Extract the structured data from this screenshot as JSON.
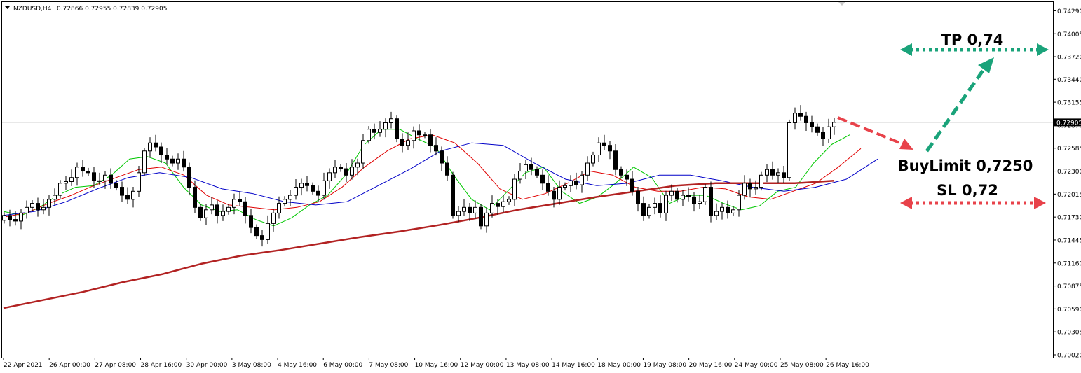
{
  "header": {
    "symbol_label": "NZDUSD,H4",
    "ohlc": "0.72866 0.72955 0.72839 0.72905"
  },
  "colors": {
    "bull_body": "#ffffff",
    "bear_body": "#000000",
    "ma_fast": "#00c800",
    "ma_mid": "#e00000",
    "ma_slow": "#0000c8",
    "ma_long": "#b22222",
    "tp_arrow": "#1aa37a",
    "sl_arrow": "#e8424a",
    "entry_arrow": "#e8424a",
    "current_price_line": "#c0c0c0"
  },
  "annotations": {
    "tp": "TP 0,74",
    "entry": "BuyLimit 0,7250",
    "sl": "SL 0,72"
  },
  "chart_data": {
    "type": "candlestick",
    "symbol": "NZDUSD",
    "timeframe": "H4",
    "current_price": 0.72905,
    "current_price_label": "0.72905",
    "ylim": [
      0.7002,
      0.7432
    ],
    "y_ticks": [
      "0.74290",
      "0.74005",
      "0.73720",
      "0.73440",
      "0.73155",
      "0.72870",
      "0.72585",
      "0.72300",
      "0.72015",
      "0.71730",
      "0.71445",
      "0.71160",
      "0.70875",
      "0.70590",
      "0.70305",
      "0.70020"
    ],
    "x_labels": [
      "22 Apr 2021",
      "26 Apr 00:00",
      "27 Apr 08:00",
      "28 Apr 16:00",
      "30 Apr 00:00",
      "3 May 08:00",
      "4 May 16:00",
      "6 May 00:00",
      "7 May 08:00",
      "10 May 16:00",
      "12 May 00:00",
      "13 May 08:00",
      "14 May 16:00",
      "18 May 00:00",
      "19 May 08:00",
      "20 May 16:00",
      "24 May 00:00",
      "25 May 08:00",
      "26 May 16:00"
    ],
    "candles_close": [
      0.7175,
      0.717,
      0.7168,
      0.7178,
      0.7185,
      0.719,
      0.7182,
      0.7185,
      0.7195,
      0.72,
      0.7215,
      0.7217,
      0.7222,
      0.7235,
      0.723,
      0.7228,
      0.7218,
      0.7218,
      0.7225,
      0.7215,
      0.721,
      0.72,
      0.7195,
      0.7205,
      0.7228,
      0.7255,
      0.7265,
      0.726,
      0.725,
      0.7245,
      0.724,
      0.7245,
      0.7235,
      0.721,
      0.7185,
      0.7172,
      0.7182,
      0.7188,
      0.7175,
      0.718,
      0.7185,
      0.7195,
      0.7192,
      0.7175,
      0.716,
      0.715,
      0.7145,
      0.7165,
      0.7178,
      0.719,
      0.7195,
      0.72,
      0.721,
      0.7215,
      0.7212,
      0.7205,
      0.72,
      0.7218,
      0.7228,
      0.7235,
      0.7233,
      0.7225,
      0.7235,
      0.724,
      0.7268,
      0.7282,
      0.7278,
      0.7282,
      0.729,
      0.7295,
      0.727,
      0.7262,
      0.7268,
      0.728,
      0.7275,
      0.7275,
      0.7262,
      0.7255,
      0.724,
      0.7225,
      0.7175,
      0.718,
      0.7185,
      0.7178,
      0.7185,
      0.7162,
      0.7178,
      0.719,
      0.7186,
      0.7192,
      0.7195,
      0.722,
      0.723,
      0.7238,
      0.7232,
      0.7225,
      0.7215,
      0.7205,
      0.7195,
      0.721,
      0.7212,
      0.7218,
      0.7213,
      0.7225,
      0.724,
      0.725,
      0.7265,
      0.7262,
      0.7255,
      0.7232,
      0.7225,
      0.722,
      0.7205,
      0.719,
      0.7175,
      0.7185,
      0.719,
      0.7178,
      0.72,
      0.7205,
      0.7195,
      0.72,
      0.7198,
      0.719,
      0.7192,
      0.721,
      0.7175,
      0.718,
      0.7185,
      0.7178,
      0.7182,
      0.72,
      0.7215,
      0.7208,
      0.721,
      0.7225,
      0.7232,
      0.7225,
      0.7228,
      0.7222,
      0.729,
      0.7302,
      0.7298,
      0.729,
      0.7285,
      0.7278,
      0.727,
      0.7285,
      0.72905
    ],
    "ma_series": [
      {
        "values": [
          0.718,
          0.7175,
          0.7185,
          0.72,
          0.721,
          0.7212,
          0.7225,
          0.7245,
          0.7248,
          0.724,
          0.721,
          0.7188,
          0.718,
          0.7182,
          0.717,
          0.7162,
          0.7172,
          0.7188,
          0.72,
          0.7225,
          0.7262,
          0.7282,
          0.7282,
          0.727,
          0.726,
          0.7225,
          0.7195,
          0.7182,
          0.7205,
          0.7228,
          0.7235,
          0.7205,
          0.719,
          0.7198,
          0.7215,
          0.7235,
          0.7222,
          0.719,
          0.72,
          0.72,
          0.719,
          0.7182,
          0.7187,
          0.7205,
          0.721,
          0.724,
          0.7263,
          0.7275
        ]
      },
      {
        "values": [
          0.7173,
          0.7178,
          0.719,
          0.72,
          0.7212,
          0.7222,
          0.7232,
          0.7235,
          0.7225,
          0.72,
          0.7188,
          0.7185,
          0.7182,
          0.7185,
          0.7192,
          0.721,
          0.7235,
          0.7255,
          0.727,
          0.7275,
          0.7265,
          0.724,
          0.7208,
          0.7195,
          0.7202,
          0.7215,
          0.723,
          0.7225,
          0.721,
          0.7205,
          0.7205,
          0.721,
          0.7208,
          0.7198,
          0.7195,
          0.7205,
          0.7215,
          0.7235,
          0.7258
        ]
      },
      {
        "values": [
          0.7175,
          0.718,
          0.7192,
          0.7208,
          0.7222,
          0.7228,
          0.7222,
          0.7208,
          0.7202,
          0.7192,
          0.7188,
          0.7192,
          0.7212,
          0.7232,
          0.7255,
          0.7265,
          0.7262,
          0.724,
          0.722,
          0.7212,
          0.7215,
          0.7225,
          0.7225,
          0.7218,
          0.721,
          0.7205,
          0.721,
          0.722,
          0.7245
        ]
      },
      {
        "values": [
          0.706,
          0.707,
          0.708,
          0.7092,
          0.7102,
          0.7115,
          0.7125,
          0.7132,
          0.714,
          0.7148,
          0.7155,
          0.7163,
          0.7172,
          0.7182,
          0.719,
          0.7198,
          0.7205,
          0.7212,
          0.7215,
          0.7215,
          0.7215,
          0.7218
        ]
      }
    ],
    "grid": false
  }
}
